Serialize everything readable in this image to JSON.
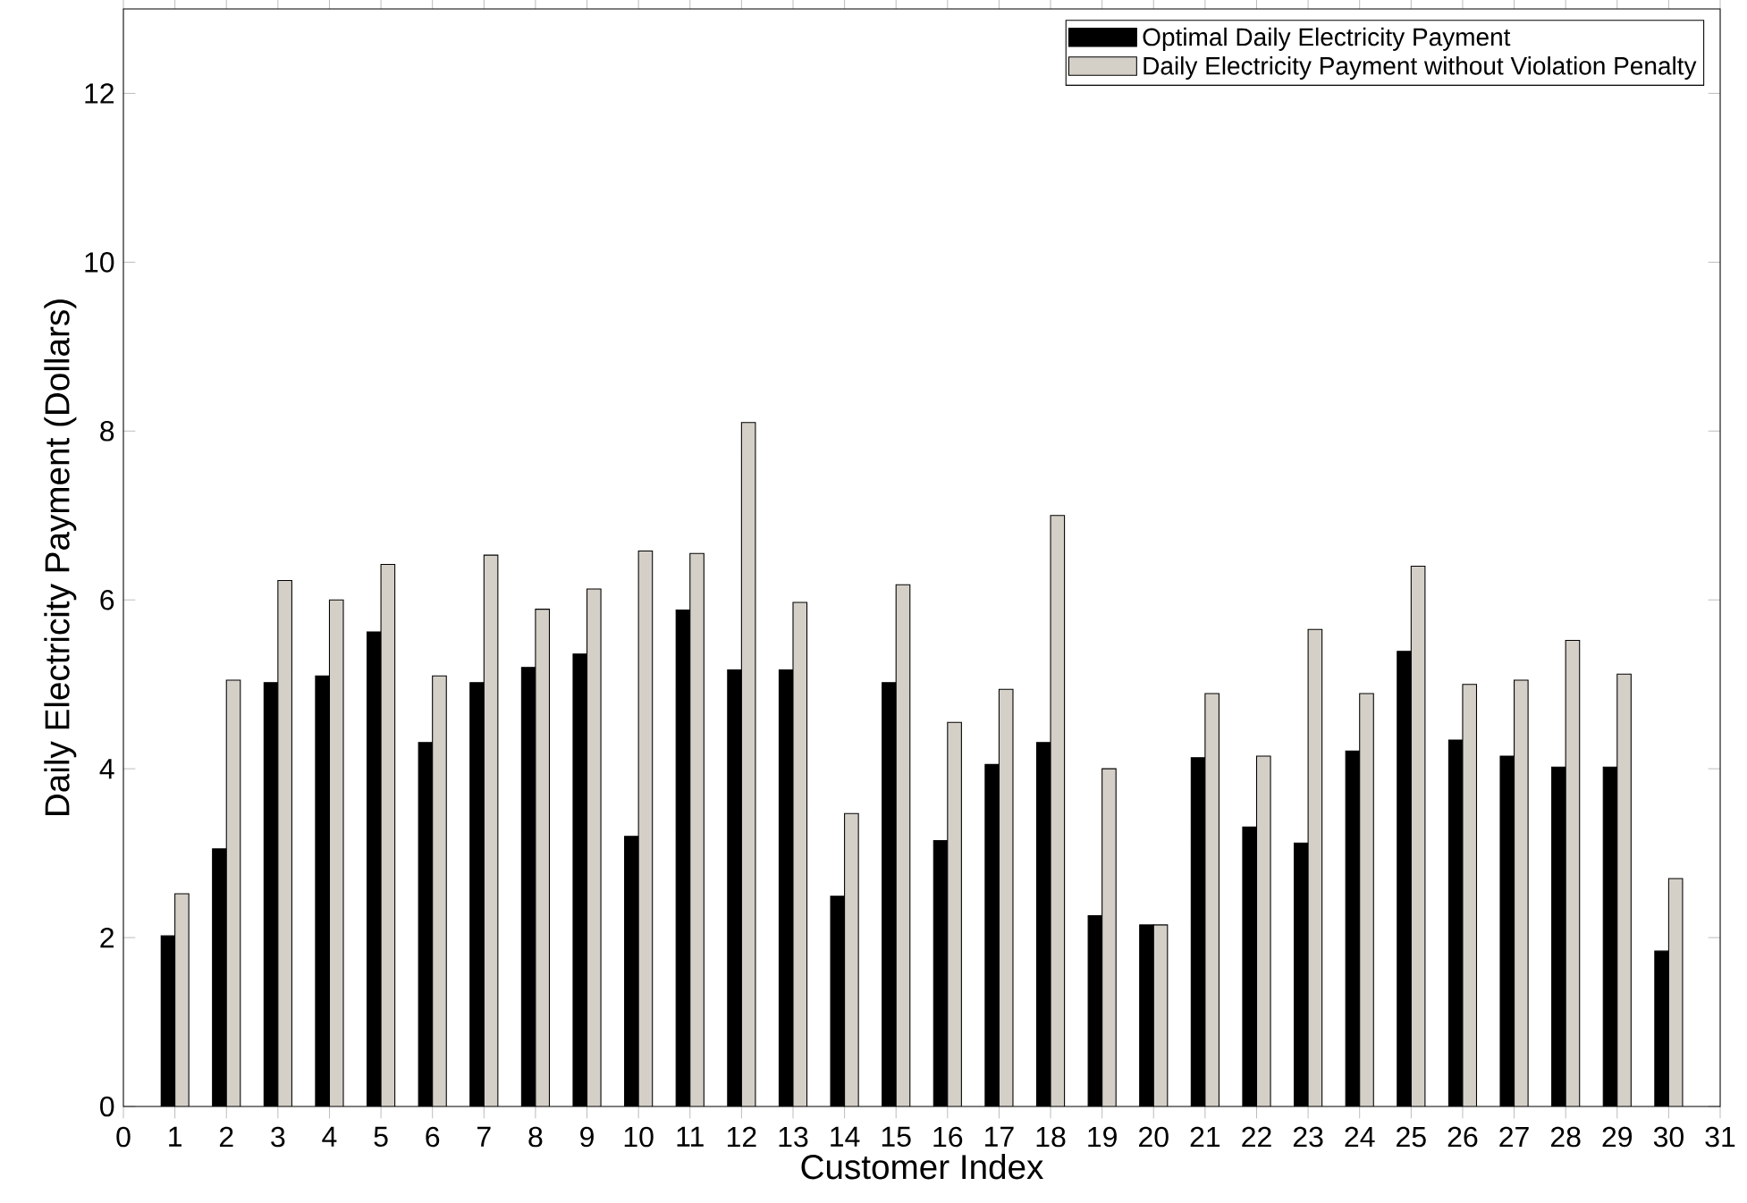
{
  "chart_data": {
    "type": "bar",
    "xlabel": "Customer Index",
    "ylabel": "Daily Electricity Payment (Dollars)",
    "x": [
      1,
      2,
      3,
      4,
      5,
      6,
      7,
      8,
      9,
      10,
      11,
      12,
      13,
      14,
      15,
      16,
      17,
      18,
      19,
      20,
      21,
      22,
      23,
      24,
      25,
      26,
      27,
      28,
      29,
      30
    ],
    "series": [
      {
        "name": "Optimal Daily Electricity Payment",
        "color": "#000000",
        "values": [
          2.02,
          3.05,
          5.02,
          5.1,
          5.62,
          4.31,
          5.02,
          5.2,
          5.36,
          3.2,
          5.88,
          5.17,
          5.17,
          2.49,
          5.02,
          3.15,
          4.05,
          4.31,
          2.26,
          2.15,
          4.13,
          3.31,
          3.12,
          4.21,
          5.39,
          4.34,
          4.15,
          4.02,
          4.02,
          1.84
        ]
      },
      {
        "name": "Daily Electricity Payment without Violation Penalty",
        "color": "#d4d0c8",
        "values": [
          2.52,
          5.05,
          6.23,
          6.0,
          6.42,
          5.1,
          6.53,
          5.89,
          6.13,
          6.58,
          6.55,
          8.1,
          5.97,
          3.47,
          6.18,
          4.55,
          4.94,
          7.0,
          4.0,
          2.15,
          4.89,
          4.15,
          5.65,
          4.89,
          6.4,
          5.0,
          5.05,
          5.52,
          5.12,
          2.7
        ]
      }
    ],
    "xlim": [
      0,
      31
    ],
    "xticks": [
      0,
      1,
      2,
      3,
      4,
      5,
      6,
      7,
      8,
      9,
      10,
      11,
      12,
      13,
      14,
      15,
      16,
      17,
      18,
      19,
      20,
      21,
      22,
      23,
      24,
      25,
      26,
      27,
      28,
      29,
      30,
      31
    ],
    "ylim": [
      0,
      13
    ],
    "yticks": [
      0,
      2,
      4,
      6,
      8,
      10,
      12
    ],
    "grid": false,
    "legend": "top right"
  }
}
